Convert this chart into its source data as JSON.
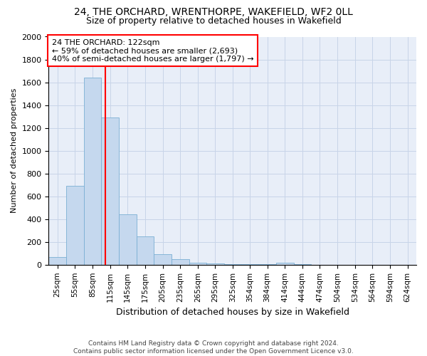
{
  "title1": "24, THE ORCHARD, WRENTHORPE, WAKEFIELD, WF2 0LL",
  "title2": "Size of property relative to detached houses in Wakefield",
  "xlabel": "Distribution of detached houses by size in Wakefield",
  "ylabel": "Number of detached properties",
  "footnote": "Contains HM Land Registry data © Crown copyright and database right 2024.\nContains public sector information licensed under the Open Government Licence v3.0.",
  "annotation_line1": "24 THE ORCHARD: 122sqm",
  "annotation_line2": "← 59% of detached houses are smaller (2,693)",
  "annotation_line3": "40% of semi-detached houses are larger (1,797) →",
  "bar_color": "#c5d8ee",
  "bar_edge_color": "#7aafd4",
  "red_line_x": 122,
  "bin_starts": [
    25,
    55,
    85,
    115,
    145,
    175,
    205,
    235,
    265,
    295,
    325,
    354,
    384,
    414,
    444,
    474,
    504,
    534,
    564,
    594,
    624
  ],
  "bin_width": 30,
  "bar_heights": [
    65,
    690,
    1640,
    1290,
    440,
    250,
    90,
    50,
    20,
    10,
    5,
    3,
    2,
    15,
    2,
    0,
    0,
    0,
    0,
    0,
    0
  ],
  "ylim": [
    0,
    2000
  ],
  "yticks": [
    0,
    200,
    400,
    600,
    800,
    1000,
    1200,
    1400,
    1600,
    1800,
    2000
  ],
  "grid_color": "#c8d4e8",
  "background_color": "#e8eef8",
  "title1_fontsize": 10,
  "title2_fontsize": 9,
  "xlabel_fontsize": 9,
  "ylabel_fontsize": 8,
  "footnote_fontsize": 6.5,
  "annotation_fontsize": 8
}
